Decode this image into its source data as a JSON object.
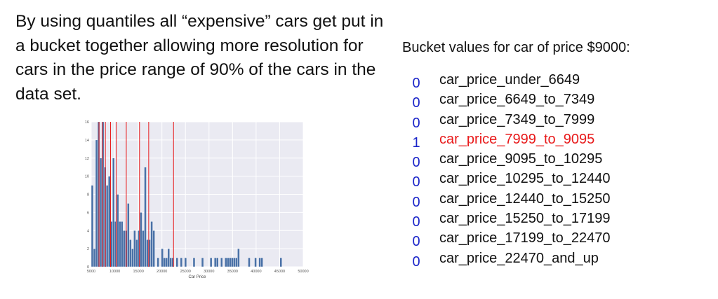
{
  "left_text": "By using quantiles all “expensive” cars get put in a bucket together allowing more resolution for cars in the price range of 90% of the cars in the data set.",
  "right_title": "Bucket values for car of price $9000:",
  "buckets": [
    {
      "value": "0",
      "name": "car_price_under_6649"
    },
    {
      "value": "0",
      "name": "car_price_6649_to_7349"
    },
    {
      "value": "0",
      "name": "car_price_7349_to_7999"
    },
    {
      "value": "1",
      "name": "car_price_7999_to_9095"
    },
    {
      "value": "0",
      "name": "car_price_9095_to_10295"
    },
    {
      "value": "0",
      "name": "car_price_10295_to_12440"
    },
    {
      "value": "0",
      "name": "car_price_12440_to_15250"
    },
    {
      "value": "0",
      "name": "car_price_15250_to_17199"
    },
    {
      "value": "0",
      "name": "car_price_17199_to_22470"
    },
    {
      "value": "0",
      "name": "car_price_22470_and_up"
    }
  ],
  "highlight_color": "#e8191a",
  "value_color": "#1a24c9",
  "chart_data": {
    "type": "bar",
    "xlabel": "Car Price",
    "ylabel": "",
    "xlim": [
      5000,
      50000
    ],
    "ylim": [
      0,
      16
    ],
    "xticks": [
      5000,
      10000,
      15000,
      20000,
      25000,
      30000,
      35000,
      40000,
      45000,
      50000
    ],
    "yticks": [
      0,
      2,
      4,
      6,
      8,
      10,
      12,
      14,
      16
    ],
    "bin_width": 450,
    "bins": [
      {
        "x": 5000,
        "count": 9
      },
      {
        "x": 5450,
        "count": 2
      },
      {
        "x": 5900,
        "count": 14
      },
      {
        "x": 6350,
        "count": 16
      },
      {
        "x": 6800,
        "count": 12
      },
      {
        "x": 7250,
        "count": 16
      },
      {
        "x": 7700,
        "count": 11
      },
      {
        "x": 8150,
        "count": 9
      },
      {
        "x": 8600,
        "count": 10
      },
      {
        "x": 9050,
        "count": 5
      },
      {
        "x": 9500,
        "count": 12
      },
      {
        "x": 9950,
        "count": 5
      },
      {
        "x": 10400,
        "count": 8
      },
      {
        "x": 10850,
        "count": 5
      },
      {
        "x": 11300,
        "count": 5
      },
      {
        "x": 11750,
        "count": 4
      },
      {
        "x": 12200,
        "count": 4
      },
      {
        "x": 12650,
        "count": 7
      },
      {
        "x": 13100,
        "count": 3
      },
      {
        "x": 13550,
        "count": 2
      },
      {
        "x": 14000,
        "count": 4
      },
      {
        "x": 14450,
        "count": 3
      },
      {
        "x": 14900,
        "count": 4
      },
      {
        "x": 15350,
        "count": 6
      },
      {
        "x": 15800,
        "count": 4
      },
      {
        "x": 16250,
        "count": 11
      },
      {
        "x": 16700,
        "count": 3
      },
      {
        "x": 17150,
        "count": 3
      },
      {
        "x": 17600,
        "count": 5
      },
      {
        "x": 18050,
        "count": 4
      },
      {
        "x": 18500,
        "count": 0
      },
      {
        "x": 18950,
        "count": 1
      },
      {
        "x": 19400,
        "count": 0
      },
      {
        "x": 19850,
        "count": 2
      },
      {
        "x": 20300,
        "count": 1
      },
      {
        "x": 20750,
        "count": 1
      },
      {
        "x": 21200,
        "count": 2
      },
      {
        "x": 21650,
        "count": 1
      },
      {
        "x": 22100,
        "count": 1
      },
      {
        "x": 23000,
        "count": 1
      },
      {
        "x": 23900,
        "count": 1
      },
      {
        "x": 24800,
        "count": 1
      },
      {
        "x": 26600,
        "count": 1
      },
      {
        "x": 28400,
        "count": 1
      },
      {
        "x": 30200,
        "count": 1
      },
      {
        "x": 31100,
        "count": 1
      },
      {
        "x": 31550,
        "count": 1
      },
      {
        "x": 32450,
        "count": 1
      },
      {
        "x": 33350,
        "count": 1
      },
      {
        "x": 33800,
        "count": 1
      },
      {
        "x": 34250,
        "count": 1
      },
      {
        "x": 34700,
        "count": 1
      },
      {
        "x": 35150,
        "count": 1
      },
      {
        "x": 35600,
        "count": 1
      },
      {
        "x": 36050,
        "count": 2
      },
      {
        "x": 38300,
        "count": 1
      },
      {
        "x": 39650,
        "count": 1
      },
      {
        "x": 40550,
        "count": 1
      },
      {
        "x": 41000,
        "count": 1
      },
      {
        "x": 45050,
        "count": 1
      }
    ],
    "quantile_lines": [
      6649,
      7349,
      7999,
      9095,
      10295,
      12440,
      15250,
      17199,
      22470
    ],
    "bar_color": "#4a71a7",
    "line_color": "#e8191a",
    "plot_bg": "#eaeaf2"
  }
}
